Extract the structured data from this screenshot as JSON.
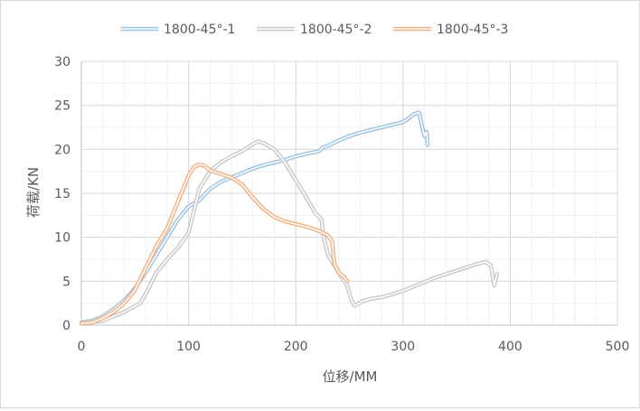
{
  "chart_data": {
    "type": "line",
    "xlabel": "位移/MM",
    "ylabel": "荷载/KN",
    "xlim": [
      0,
      500
    ],
    "ylim": [
      0,
      30
    ],
    "x_ticks": [
      0,
      100,
      200,
      300,
      400,
      500
    ],
    "y_ticks": [
      0,
      5,
      10,
      15,
      20,
      25,
      30
    ],
    "x_minor_step": 20,
    "y_minor_step": 2.5,
    "grid": true,
    "legend_position": "top",
    "series": [
      {
        "name": "1800-45°-1",
        "color": "#9dc3e6",
        "points": [
          [
            0,
            0.3
          ],
          [
            10,
            0.5
          ],
          [
            20,
            1.0
          ],
          [
            30,
            1.8
          ],
          [
            40,
            2.8
          ],
          [
            50,
            4.2
          ],
          [
            60,
            6.0
          ],
          [
            70,
            8.0
          ],
          [
            80,
            10.0
          ],
          [
            90,
            12.0
          ],
          [
            100,
            13.5
          ],
          [
            110,
            14.2
          ],
          [
            120,
            15.5
          ],
          [
            130,
            16.3
          ],
          [
            140,
            16.8
          ],
          [
            150,
            17.3
          ],
          [
            160,
            17.8
          ],
          [
            170,
            18.2
          ],
          [
            180,
            18.5
          ],
          [
            190,
            18.8
          ],
          [
            200,
            19.2
          ],
          [
            210,
            19.5
          ],
          [
            222,
            19.8
          ],
          [
            225,
            20.2
          ],
          [
            230,
            20.4
          ],
          [
            240,
            21.0
          ],
          [
            250,
            21.5
          ],
          [
            260,
            21.9
          ],
          [
            270,
            22.2
          ],
          [
            280,
            22.5
          ],
          [
            290,
            22.8
          ],
          [
            300,
            23.1
          ],
          [
            305,
            23.5
          ],
          [
            310,
            24.0
          ],
          [
            315,
            24.2
          ],
          [
            318,
            22.5
          ],
          [
            320,
            21.5
          ],
          [
            322,
            22.0
          ],
          [
            323,
            20.5
          ]
        ]
      },
      {
        "name": "1800-45°-2",
        "color": "#c9c9c9",
        "points": [
          [
            0,
            0.2
          ],
          [
            20,
            0.5
          ],
          [
            40,
            1.5
          ],
          [
            55,
            2.5
          ],
          [
            62,
            4.0
          ],
          [
            70,
            6.0
          ],
          [
            80,
            7.5
          ],
          [
            90,
            8.8
          ],
          [
            100,
            10.5
          ],
          [
            105,
            13.0
          ],
          [
            110,
            15.5
          ],
          [
            120,
            17.5
          ],
          [
            130,
            18.5
          ],
          [
            140,
            19.2
          ],
          [
            150,
            19.8
          ],
          [
            160,
            20.6
          ],
          [
            165,
            20.9
          ],
          [
            170,
            20.7
          ],
          [
            180,
            20.0
          ],
          [
            190,
            18.5
          ],
          [
            200,
            16.5
          ],
          [
            210,
            14.5
          ],
          [
            218,
            12.8
          ],
          [
            224,
            12.0
          ],
          [
            226,
            10.0
          ],
          [
            230,
            8.0
          ],
          [
            240,
            6.0
          ],
          [
            248,
            4.5
          ],
          [
            252,
            2.8
          ],
          [
            255,
            2.2
          ],
          [
            262,
            2.7
          ],
          [
            270,
            3.0
          ],
          [
            280,
            3.2
          ],
          [
            290,
            3.5
          ],
          [
            300,
            3.9
          ],
          [
            310,
            4.4
          ],
          [
            320,
            4.9
          ],
          [
            330,
            5.4
          ],
          [
            340,
            5.8
          ],
          [
            350,
            6.2
          ],
          [
            360,
            6.6
          ],
          [
            370,
            7.0
          ],
          [
            377,
            7.2
          ],
          [
            382,
            6.8
          ],
          [
            385,
            4.5
          ],
          [
            387,
            5.5
          ],
          [
            388,
            5.8
          ]
        ]
      },
      {
        "name": "1800-45°-3",
        "color": "#f4b183",
        "points": [
          [
            0,
            0.2
          ],
          [
            10,
            0.3
          ],
          [
            20,
            0.8
          ],
          [
            30,
            1.5
          ],
          [
            40,
            2.5
          ],
          [
            50,
            4.0
          ],
          [
            60,
            6.5
          ],
          [
            70,
            9.0
          ],
          [
            80,
            11.0
          ],
          [
            90,
            14.0
          ],
          [
            100,
            17.0
          ],
          [
            105,
            18.0
          ],
          [
            110,
            18.3
          ],
          [
            115,
            18.1
          ],
          [
            120,
            17.6
          ],
          [
            130,
            17.2
          ],
          [
            140,
            16.8
          ],
          [
            150,
            16.0
          ],
          [
            160,
            14.5
          ],
          [
            170,
            13.2
          ],
          [
            180,
            12.3
          ],
          [
            190,
            11.8
          ],
          [
            200,
            11.5
          ],
          [
            210,
            11.2
          ],
          [
            220,
            10.8
          ],
          [
            230,
            10.2
          ],
          [
            234,
            9.5
          ],
          [
            236,
            7.0
          ],
          [
            240,
            6.0
          ],
          [
            245,
            5.5
          ],
          [
            248,
            5.0
          ]
        ]
      }
    ]
  }
}
